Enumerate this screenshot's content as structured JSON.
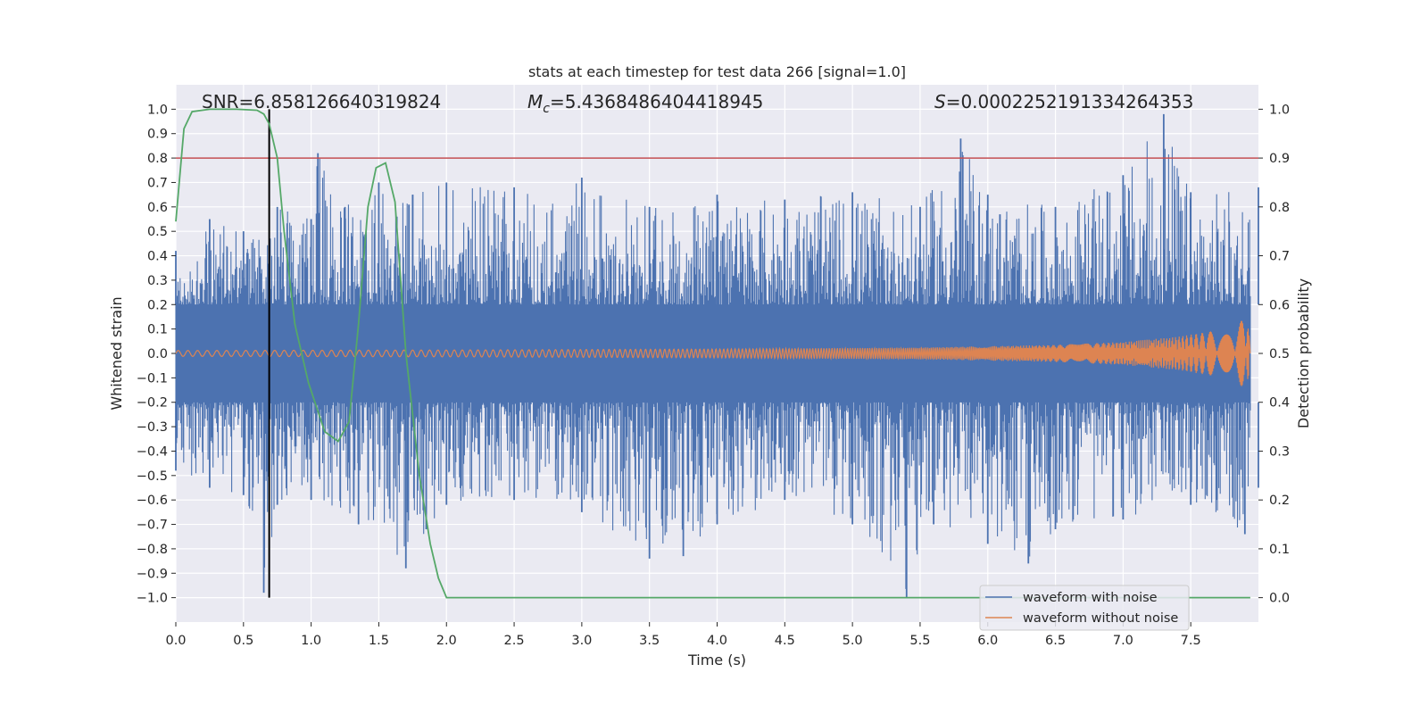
{
  "chart_data": {
    "type": "line",
    "title": "stats at each timestep for test data 266 [signal=1.0]",
    "xlabel": "Time (s)",
    "ylabel": "Whitened strain",
    "y2label": "Detection probability",
    "xlim": [
      0.0,
      8.0
    ],
    "ylim": [
      -1.1,
      1.1
    ],
    "y2lim": [
      -0.05,
      1.05
    ],
    "xticks": [
      "0.0",
      "0.5",
      "1.0",
      "1.5",
      "2.0",
      "2.5",
      "3.0",
      "3.5",
      "4.0",
      "4.5",
      "5.0",
      "5.5",
      "6.0",
      "6.5",
      "7.0",
      "7.5"
    ],
    "yticks": [
      "1.0",
      "0.9",
      "0.8",
      "0.7",
      "0.6",
      "0.5",
      "0.4",
      "0.3",
      "0.2",
      "0.1",
      "0.0",
      "−0.1",
      "−0.2",
      "−0.3",
      "−0.4",
      "−0.5",
      "−0.6",
      "−0.7",
      "−0.8",
      "−0.9",
      "−1.0"
    ],
    "y2ticks": [
      "1.0",
      "0.9",
      "0.8",
      "0.7",
      "0.6",
      "0.5",
      "0.4",
      "0.3",
      "0.2",
      "0.1",
      "0.0"
    ],
    "annotations": {
      "snr": "SNR=6.858126640319824",
      "mc_symbol": "M",
      "mc_sub": "c",
      "mc_value": "=5.4368486404418945",
      "s_symbol": "S",
      "s_value": "=0.000225219133426435​3"
    },
    "threshold": {
      "y2": 0.9,
      "color": "#c44e52"
    },
    "marker_line": {
      "x": 0.69,
      "y_range": [
        -1.0,
        1.0
      ],
      "color": "#000000"
    },
    "series": [
      {
        "name": "waveform with noise",
        "color": "#4c72b0",
        "axis": "left",
        "envelope_hi": [
          [
            0.0,
            0.42
          ],
          [
            0.25,
            0.55
          ],
          [
            0.5,
            0.5
          ],
          [
            0.75,
            0.6
          ],
          [
            1.0,
            0.55
          ],
          [
            1.05,
            0.82
          ],
          [
            1.25,
            0.6
          ],
          [
            1.5,
            0.7
          ],
          [
            1.75,
            0.65
          ],
          [
            2.0,
            0.7
          ],
          [
            2.5,
            0.68
          ],
          [
            3.0,
            0.72
          ],
          [
            3.5,
            0.6
          ],
          [
            4.0,
            0.65
          ],
          [
            4.5,
            0.63
          ],
          [
            5.0,
            0.66
          ],
          [
            5.5,
            0.6
          ],
          [
            5.8,
            0.88
          ],
          [
            6.0,
            0.65
          ],
          [
            6.5,
            0.6
          ],
          [
            7.0,
            0.73
          ],
          [
            7.3,
            0.98
          ],
          [
            7.5,
            0.66
          ],
          [
            8.0,
            0.68
          ]
        ],
        "envelope_lo": [
          [
            0.0,
            -0.48
          ],
          [
            0.25,
            -0.55
          ],
          [
            0.5,
            -0.58
          ],
          [
            0.65,
            -0.98
          ],
          [
            0.75,
            -0.62
          ],
          [
            1.0,
            -0.6
          ],
          [
            1.35,
            -0.7
          ],
          [
            1.7,
            -0.88
          ],
          [
            1.85,
            -0.72
          ],
          [
            2.0,
            -0.62
          ],
          [
            2.5,
            -0.6
          ],
          [
            3.0,
            -0.65
          ],
          [
            3.5,
            -0.84
          ],
          [
            3.75,
            -0.83
          ],
          [
            4.0,
            -0.7
          ],
          [
            4.5,
            -0.6
          ],
          [
            5.0,
            -0.7
          ],
          [
            5.4,
            -1.0
          ],
          [
            5.6,
            -0.7
          ],
          [
            6.0,
            -0.78
          ],
          [
            6.3,
            -0.86
          ],
          [
            6.5,
            -0.72
          ],
          [
            7.0,
            -0.68
          ],
          [
            7.5,
            -0.62
          ],
          [
            7.9,
            -0.74
          ],
          [
            8.0,
            -0.55
          ]
        ]
      },
      {
        "name": "waveform without noise",
        "color": "#dd8452",
        "axis": "left",
        "amplitude": [
          [
            0.0,
            0.012
          ],
          [
            2.0,
            0.014
          ],
          [
            4.0,
            0.018
          ],
          [
            5.5,
            0.024
          ],
          [
            6.5,
            0.035
          ],
          [
            7.0,
            0.047
          ],
          [
            7.4,
            0.068
          ],
          [
            7.7,
            0.095
          ],
          [
            7.85,
            0.125
          ],
          [
            7.92,
            0.15
          ],
          [
            7.94,
            0.0
          ]
        ]
      },
      {
        "name": "detection probability",
        "color": "#55a868",
        "axis": "right",
        "x": [
          0.0,
          0.06,
          0.12,
          0.25,
          0.45,
          0.6,
          0.65,
          0.69,
          0.75,
          0.8,
          0.88,
          0.98,
          1.1,
          1.2,
          1.28,
          1.35,
          1.42,
          1.48,
          1.55,
          1.62,
          1.7,
          1.8,
          1.88,
          1.94,
          2.0,
          2.1,
          3.0,
          4.0,
          5.0,
          6.0,
          7.0,
          7.94
        ],
        "y": [
          0.77,
          0.96,
          0.995,
          1.0,
          1.0,
          0.998,
          0.99,
          0.97,
          0.9,
          0.75,
          0.56,
          0.44,
          0.34,
          0.32,
          0.36,
          0.56,
          0.8,
          0.88,
          0.89,
          0.81,
          0.5,
          0.25,
          0.11,
          0.04,
          0.0,
          0.0,
          0.0,
          0.0,
          0.0,
          0.0,
          0.0,
          0.0
        ]
      }
    ],
    "legend": {
      "placement": "bottom-right",
      "entries": [
        "waveform with noise",
        "waveform without noise"
      ]
    },
    "grid": true
  }
}
